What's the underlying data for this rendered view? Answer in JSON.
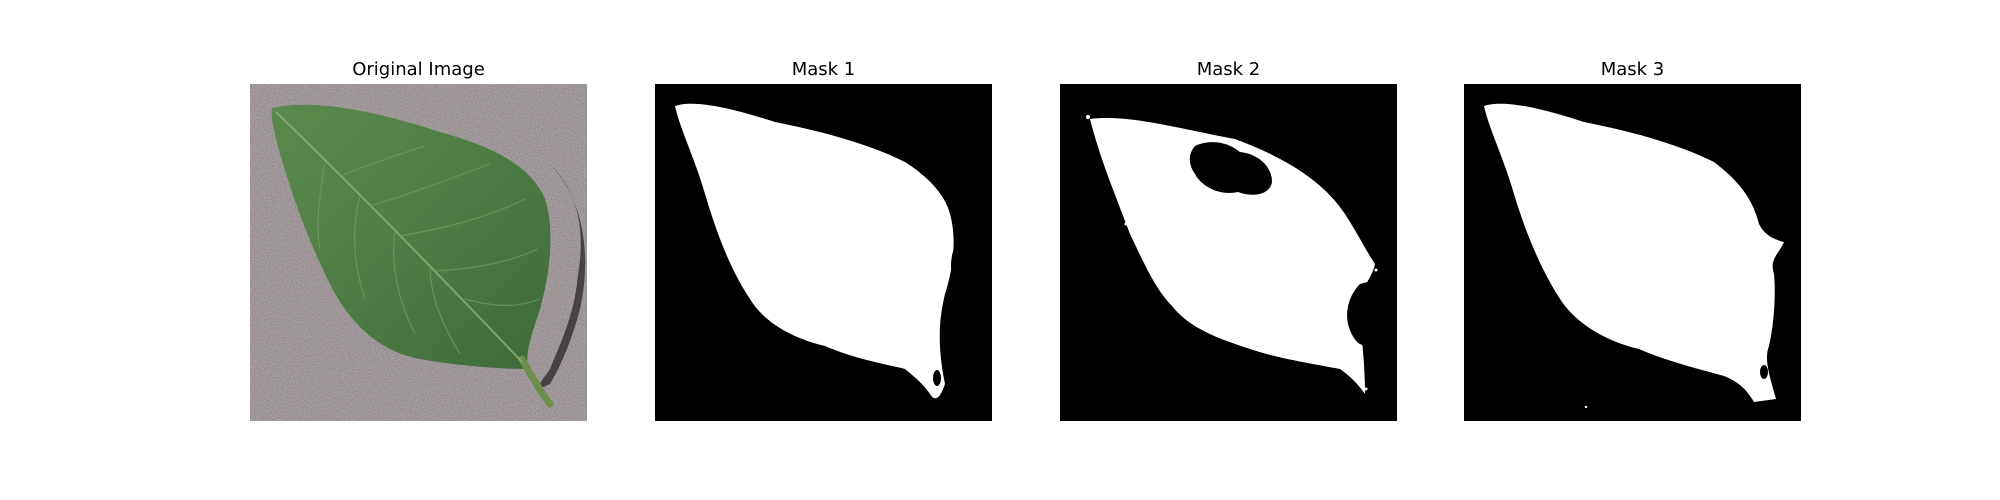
{
  "figure": {
    "panels": [
      {
        "title": "Original Image",
        "kind": "photo"
      },
      {
        "title": "Mask 1",
        "kind": "mask"
      },
      {
        "title": "Mask 2",
        "kind": "mask"
      },
      {
        "title": "Mask 3",
        "kind": "mask"
      }
    ]
  },
  "colors": {
    "background": "#ffffff",
    "mask_background": "#000000",
    "mask_foreground": "#ffffff",
    "leaf_green": "#4f7d45",
    "surface_gray": "#bfb6b8",
    "shadow": "#3a3335"
  }
}
